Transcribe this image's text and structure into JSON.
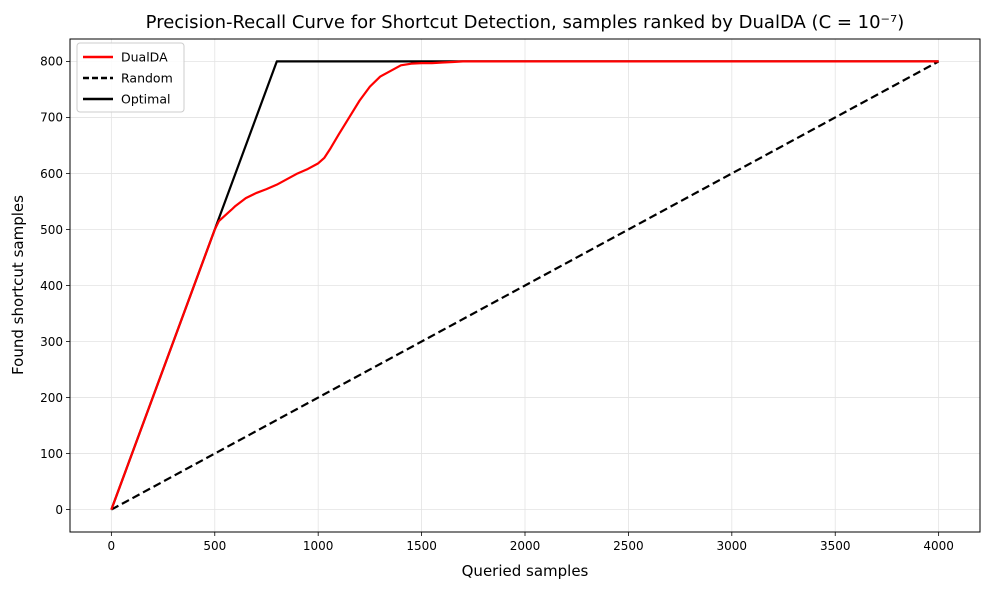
{
  "chart_data": {
    "type": "line",
    "title": "Precision-Recall Curve for Shortcut Detection, samples ranked by DualDA (C = 10⁻⁷)",
    "xlabel": "Queried samples",
    "ylabel": "Found shortcut samples",
    "xlim": [
      -200,
      4200
    ],
    "ylim": [
      -40,
      840
    ],
    "xticks": [
      0,
      500,
      1000,
      1500,
      2000,
      2500,
      3000,
      3500,
      4000
    ],
    "yticks": [
      0,
      100,
      200,
      300,
      400,
      500,
      600,
      700,
      800
    ],
    "grid": true,
    "legend_position": "upper-left",
    "series": [
      {
        "name": "DualDA",
        "color": "#ff0000",
        "style": "solid",
        "x": [
          0,
          100,
          200,
          300,
          400,
          480,
          500,
          520,
          550,
          580,
          600,
          650,
          700,
          750,
          800,
          850,
          900,
          950,
          1000,
          1030,
          1060,
          1100,
          1150,
          1200,
          1250,
          1300,
          1350,
          1400,
          1450,
          1500,
          1550,
          1600,
          1650,
          1700,
          1750,
          2000,
          2500,
          3000,
          3500,
          4000
        ],
        "y": [
          0,
          100,
          200,
          300,
          400,
          480,
          500,
          515,
          525,
          535,
          542,
          556,
          565,
          572,
          580,
          590,
          600,
          608,
          618,
          628,
          645,
          670,
          700,
          730,
          755,
          773,
          783,
          793,
          796,
          797,
          797,
          798,
          799,
          800,
          800,
          800,
          800,
          800,
          800,
          800
        ]
      },
      {
        "name": "Random",
        "color": "#000000",
        "style": "dashed",
        "x": [
          0,
          4000
        ],
        "y": [
          0,
          800
        ]
      },
      {
        "name": "Optimal",
        "color": "#000000",
        "style": "solid",
        "x": [
          0,
          800,
          4000
        ],
        "y": [
          0,
          800,
          800
        ]
      }
    ]
  }
}
